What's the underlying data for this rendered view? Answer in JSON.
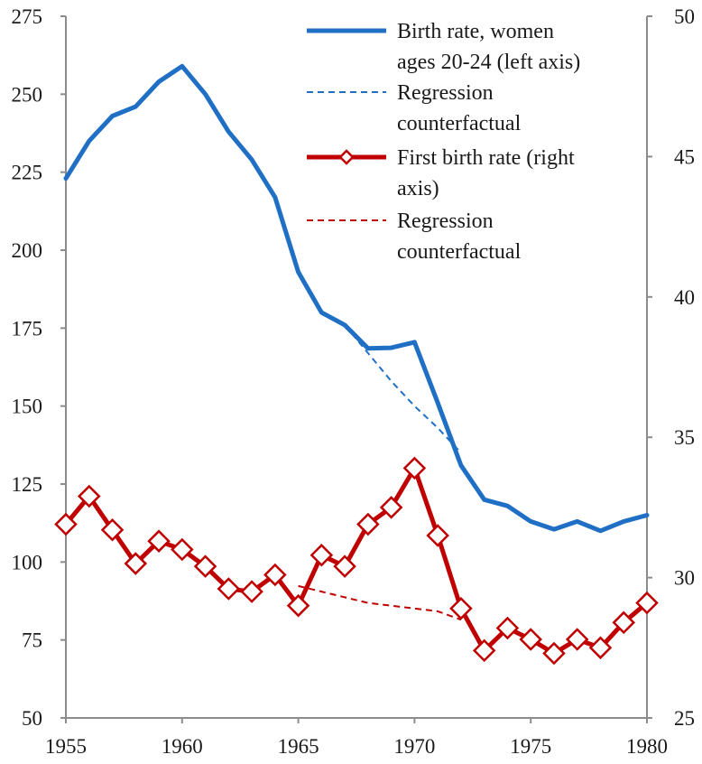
{
  "chart_data": {
    "type": "line",
    "title": "",
    "xlabel": "",
    "ylabel_left": "",
    "ylabel_right": "",
    "x_range": [
      1955,
      1980
    ],
    "x_ticks": [
      "1955",
      "1960",
      "1965",
      "1970",
      "1975",
      "1980"
    ],
    "ylim_left": [
      50,
      275
    ],
    "ylim_right": [
      25,
      50
    ],
    "y_ticks_left": [
      "50",
      "75",
      "100",
      "125",
      "150",
      "175",
      "200",
      "225",
      "250",
      "275"
    ],
    "y_ticks_right": [
      "25",
      "30",
      "35",
      "40",
      "45",
      "50"
    ],
    "grid": false,
    "legend_position": "top-right",
    "series": [
      {
        "name": "Birth rate, women ages 20-24 (left axis)",
        "legend_lines": [
          "Birth rate, women",
          "ages 20-24 (left axis)"
        ],
        "axis": "left",
        "color": "#1f6fc5",
        "style": "solid",
        "marker": "none",
        "x": [
          1955,
          1956,
          1957,
          1958,
          1959,
          1960,
          1961,
          1962,
          1963,
          1964,
          1965,
          1966,
          1967,
          1968,
          1969,
          1970,
          1971,
          1972,
          1973,
          1974,
          1975,
          1976,
          1977,
          1978,
          1979,
          1980
        ],
        "y": [
          223,
          235,
          243,
          246,
          254,
          259,
          250,
          238,
          229,
          217,
          193,
          180,
          176,
          168.5,
          168.7,
          170.5,
          151,
          131,
          120,
          118,
          113,
          110.5,
          113,
          110,
          113,
          115
        ]
      },
      {
        "name": "Regression counterfactual",
        "legend_lines": [
          "Regression",
          "counterfactual"
        ],
        "axis": "left",
        "color": "#1f6fc5",
        "style": "dashed",
        "marker": "none",
        "x": [
          1967,
          1968,
          1969,
          1970,
          1971,
          1972
        ],
        "y": [
          176,
          167,
          158,
          150,
          143,
          135
        ]
      },
      {
        "name": "First birth rate (right axis)",
        "legend_lines": [
          "First birth rate (right",
          "axis)"
        ],
        "axis": "right",
        "color": "#c00000",
        "style": "solid",
        "marker": "diamond",
        "x": [
          1955,
          1956,
          1957,
          1958,
          1959,
          1960,
          1961,
          1962,
          1963,
          1964,
          1965,
          1966,
          1967,
          1968,
          1969,
          1970,
          1971,
          1972,
          1973,
          1974,
          1975,
          1976,
          1977,
          1978,
          1979,
          1980
        ],
        "y": [
          31.9,
          32.9,
          31.7,
          30.5,
          31.3,
          31.0,
          30.4,
          29.6,
          29.5,
          30.1,
          29.0,
          30.8,
          30.4,
          31.9,
          32.5,
          33.9,
          31.5,
          28.9,
          27.4,
          28.2,
          27.8,
          27.3,
          27.8,
          27.5,
          28.4,
          29.1
        ]
      },
      {
        "name": "Regression counterfactual",
        "legend_lines": [
          "Regression",
          "counterfactual"
        ],
        "axis": "right",
        "color": "#c00000",
        "style": "dashed",
        "marker": "none",
        "x": [
          1965,
          1966,
          1967,
          1968,
          1969,
          1970,
          1971,
          1972
        ],
        "y": [
          29.7,
          29.5,
          29.3,
          29.1,
          29.0,
          28.9,
          28.8,
          28.5
        ]
      }
    ]
  }
}
